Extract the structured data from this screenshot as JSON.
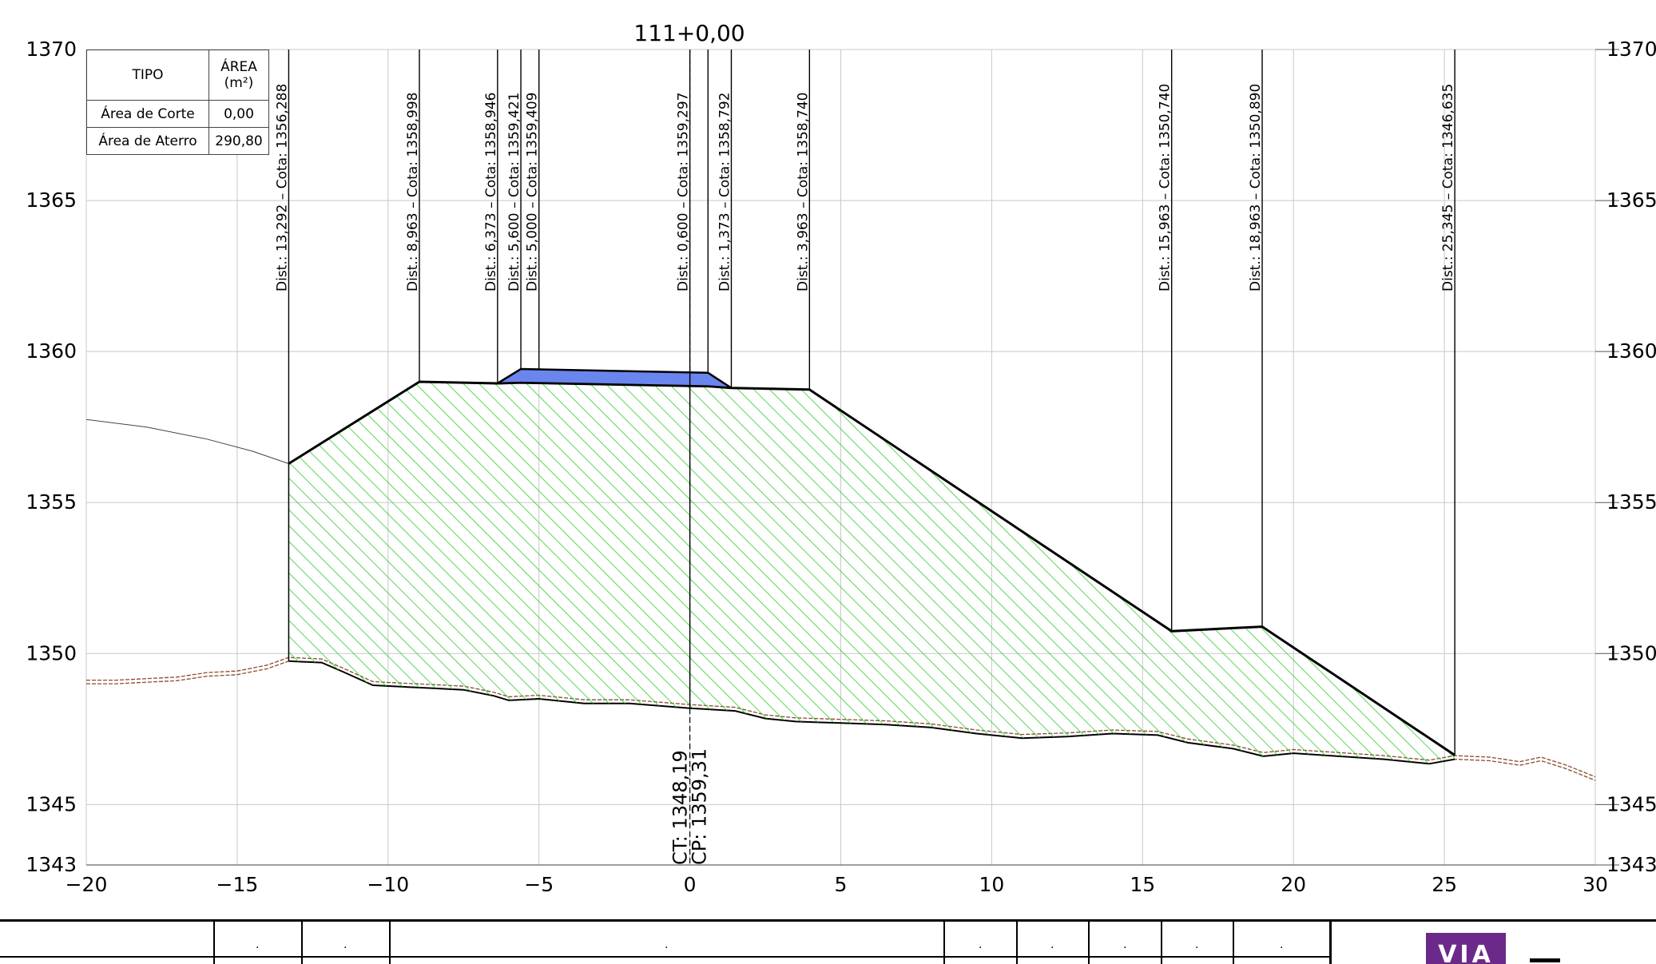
{
  "chart_data": {
    "type": "cross-section",
    "title": "111+0,00",
    "xlim": [
      -20,
      30
    ],
    "ylim": [
      1343,
      1370
    ],
    "x_ticks": [
      -20,
      -15,
      -10,
      -5,
      0,
      5,
      10,
      15,
      20,
      25,
      30
    ],
    "x_tick_labels": [
      "−20",
      "−15",
      "−10",
      "−5",
      "0",
      "5",
      "10",
      "15",
      "20",
      "25",
      "30"
    ],
    "y_ticks": [
      1343,
      1345,
      1350,
      1355,
      1360,
      1365,
      1370
    ],
    "y_tick_labels": [
      "1343",
      "1345",
      "1350",
      "1355",
      "1360",
      "1365",
      "1370"
    ],
    "grid": true,
    "terrain_profile": [
      [
        -20,
        1349.0
      ],
      [
        -19,
        1349.0
      ],
      [
        -18,
        1349.05
      ],
      [
        -17,
        1349.1
      ],
      [
        -16,
        1349.25
      ],
      [
        -15,
        1349.3
      ],
      [
        -14,
        1349.5
      ],
      [
        -13.292,
        1349.75
      ],
      [
        -12.2,
        1349.7
      ],
      [
        -11.5,
        1349.4
      ],
      [
        -10.5,
        1348.95
      ],
      [
        -9.5,
        1348.9
      ],
      [
        -8.5,
        1348.85
      ],
      [
        -7.5,
        1348.8
      ],
      [
        -6.5,
        1348.6
      ],
      [
        -6,
        1348.45
      ],
      [
        -5,
        1348.5
      ],
      [
        -3.5,
        1348.35
      ],
      [
        -2,
        1348.35
      ],
      [
        0,
        1348.19
      ],
      [
        1.5,
        1348.1
      ],
      [
        2.5,
        1347.85
      ],
      [
        3.5,
        1347.75
      ],
      [
        5,
        1347.7
      ],
      [
        6.5,
        1347.65
      ],
      [
        8,
        1347.55
      ],
      [
        9.5,
        1347.35
      ],
      [
        11,
        1347.2
      ],
      [
        12.5,
        1347.25
      ],
      [
        14,
        1347.35
      ],
      [
        15.5,
        1347.3
      ],
      [
        16.5,
        1347.05
      ],
      [
        18,
        1346.85
      ],
      [
        19,
        1346.6
      ],
      [
        20,
        1346.7
      ],
      [
        21.5,
        1346.6
      ],
      [
        23,
        1346.5
      ],
      [
        24.5,
        1346.35
      ],
      [
        25.345,
        1346.5
      ],
      [
        26.5,
        1346.45
      ],
      [
        27.5,
        1346.3
      ],
      [
        28.2,
        1346.45
      ],
      [
        29,
        1346.2
      ],
      [
        30,
        1345.8
      ]
    ],
    "original_ground_left": [
      [
        -20,
        1357.75
      ],
      [
        -18,
        1357.5
      ],
      [
        -16,
        1357.1
      ],
      [
        -14.5,
        1356.7
      ],
      [
        -13.292,
        1356.288
      ]
    ],
    "fill_section": [
      [
        -13.292,
        1356.288
      ],
      [
        -8.963,
        1358.998
      ],
      [
        -6.373,
        1358.946
      ],
      [
        -5.6,
        1358.97
      ],
      [
        0.6,
        1358.85
      ],
      [
        1.373,
        1358.792
      ],
      [
        3.963,
        1358.74
      ],
      [
        15.963,
        1350.74
      ],
      [
        18.963,
        1350.89
      ],
      [
        25.345,
        1346.635
      ]
    ],
    "pavement": [
      [
        -6.373,
        1358.946
      ],
      [
        -5.6,
        1359.421
      ],
      [
        0.6,
        1359.297
      ],
      [
        1.373,
        1358.792
      ],
      [
        0.6,
        1358.85
      ],
      [
        -5.6,
        1358.97
      ]
    ],
    "stations": [
      {
        "dist": -13.292,
        "label": "Dist.: 13,292   –   Cota: 1356,288"
      },
      {
        "dist": -8.963,
        "label": "Dist.: 8,963   –   Cota: 1358,998"
      },
      {
        "dist": -6.373,
        "label": "Dist.: 6,373   –   Cota: 1358,946"
      },
      {
        "dist": -5.6,
        "label": "Dist.: 5,600   –   Cota: 1359,421"
      },
      {
        "dist": -5.0,
        "label": "Dist.: 5,000   –   Cota: 1359,409"
      },
      {
        "dist": 0.0,
        "label": "Dist.: 0,600   –   Cota: 1359,297"
      },
      {
        "dist": 0.6,
        "label": ""
      },
      {
        "dist": 1.373,
        "label": "Dist.: 1,373   –   Cota: 1358,792"
      },
      {
        "dist": 3.963,
        "label": "Dist.: 3,963   –   Cota: 1358,740"
      },
      {
        "dist": 15.963,
        "label": "Dist.: 15,963   –   Cota: 1350,740"
      },
      {
        "dist": 18.963,
        "label": "Dist.: 18,963   –   Cota: 1350,890"
      },
      {
        "dist": 25.345,
        "label": "Dist.: 25,345   –   Cota: 1346,635"
      }
    ],
    "centerline": {
      "ct": "CT: 1348,19",
      "cp": "CP: 1359,31"
    },
    "colors": {
      "fill_hatch": "#2ecc2e",
      "pavement": "#6a86ee",
      "terrain_brown": "#8b4a2a",
      "grid": "#c8c8c8"
    }
  },
  "area_table": {
    "header_tipo": "TIPO",
    "header_area_1": "ÁREA",
    "header_area_2": "(m²)",
    "rows": [
      {
        "tipo": "Área de Corte",
        "area": "0,00"
      },
      {
        "tipo": "Área de Aterro",
        "area": "290,80"
      }
    ]
  },
  "title_block": {
    "dot": ".",
    "logo_text": "VIA"
  }
}
